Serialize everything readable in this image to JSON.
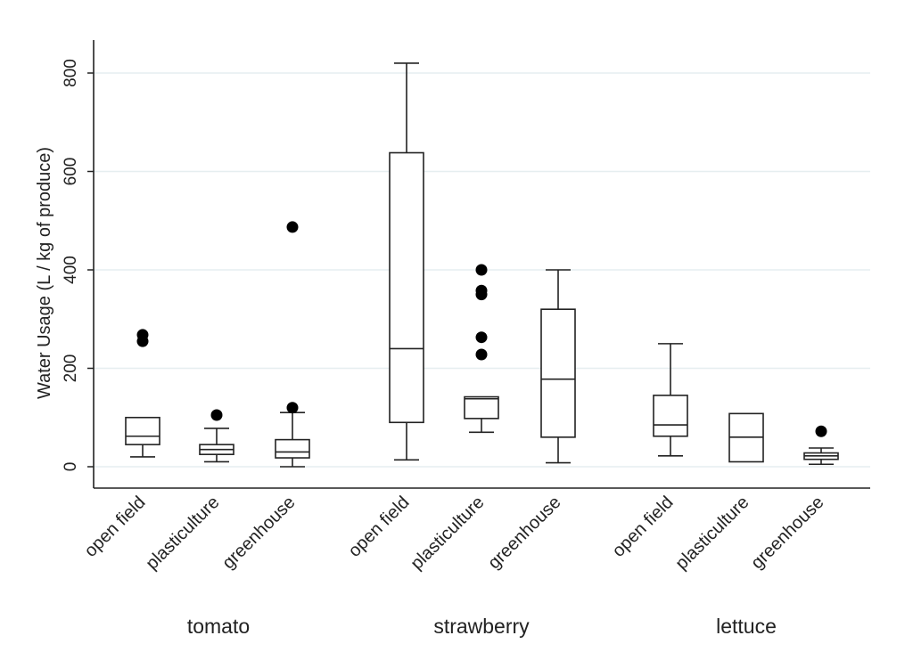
{
  "chart_data": {
    "type": "box",
    "title": "",
    "ylabel": "Water Usage (L / kg of produce)",
    "xlabel": "",
    "ylim": [
      -45,
      870
    ],
    "yticks": [
      0,
      200,
      400,
      600,
      800
    ],
    "ytick_labels": [
      "0",
      "200",
      "400",
      "600",
      "800"
    ],
    "grid": true,
    "groups": [
      {
        "name": "tomato",
        "boxes": [
          {
            "category": "open field",
            "min": 20,
            "q1": 45,
            "median": 62,
            "q3": 100,
            "max": 100,
            "outliers": [
              255,
              268
            ]
          },
          {
            "category": "plasticulture",
            "min": 10,
            "q1": 25,
            "median": 35,
            "q3": 45,
            "max": 78,
            "outliers": [
              105
            ]
          },
          {
            "category": "greenhouse",
            "min": 0,
            "q1": 18,
            "median": 30,
            "q3": 55,
            "max": 110,
            "outliers": [
              120,
              487
            ]
          }
        ]
      },
      {
        "name": "strawberry",
        "boxes": [
          {
            "category": "open field",
            "min": 14,
            "q1": 90,
            "median": 240,
            "q3": 638,
            "max": 820,
            "outliers": []
          },
          {
            "category": "plasticulture",
            "min": 70,
            "q1": 98,
            "median": 138,
            "q3": 142,
            "max": 142,
            "outliers": [
              228,
              263,
              350,
              358,
              400
            ]
          },
          {
            "category": "greenhouse",
            "min": 8,
            "q1": 60,
            "median": 178,
            "q3": 320,
            "max": 400,
            "outliers": []
          }
        ]
      },
      {
        "name": "lettuce",
        "boxes": [
          {
            "category": "open field",
            "min": 22,
            "q1": 62,
            "median": 85,
            "q3": 145,
            "max": 250,
            "outliers": []
          },
          {
            "category": "plasticulture",
            "min": 10,
            "q1": 10,
            "median": 60,
            "q3": 108,
            "max": 108,
            "outliers": []
          },
          {
            "category": "greenhouse",
            "min": 5,
            "q1": 15,
            "median": 22,
            "q3": 28,
            "max": 38,
            "outliers": [
              72
            ]
          }
        ]
      }
    ]
  }
}
